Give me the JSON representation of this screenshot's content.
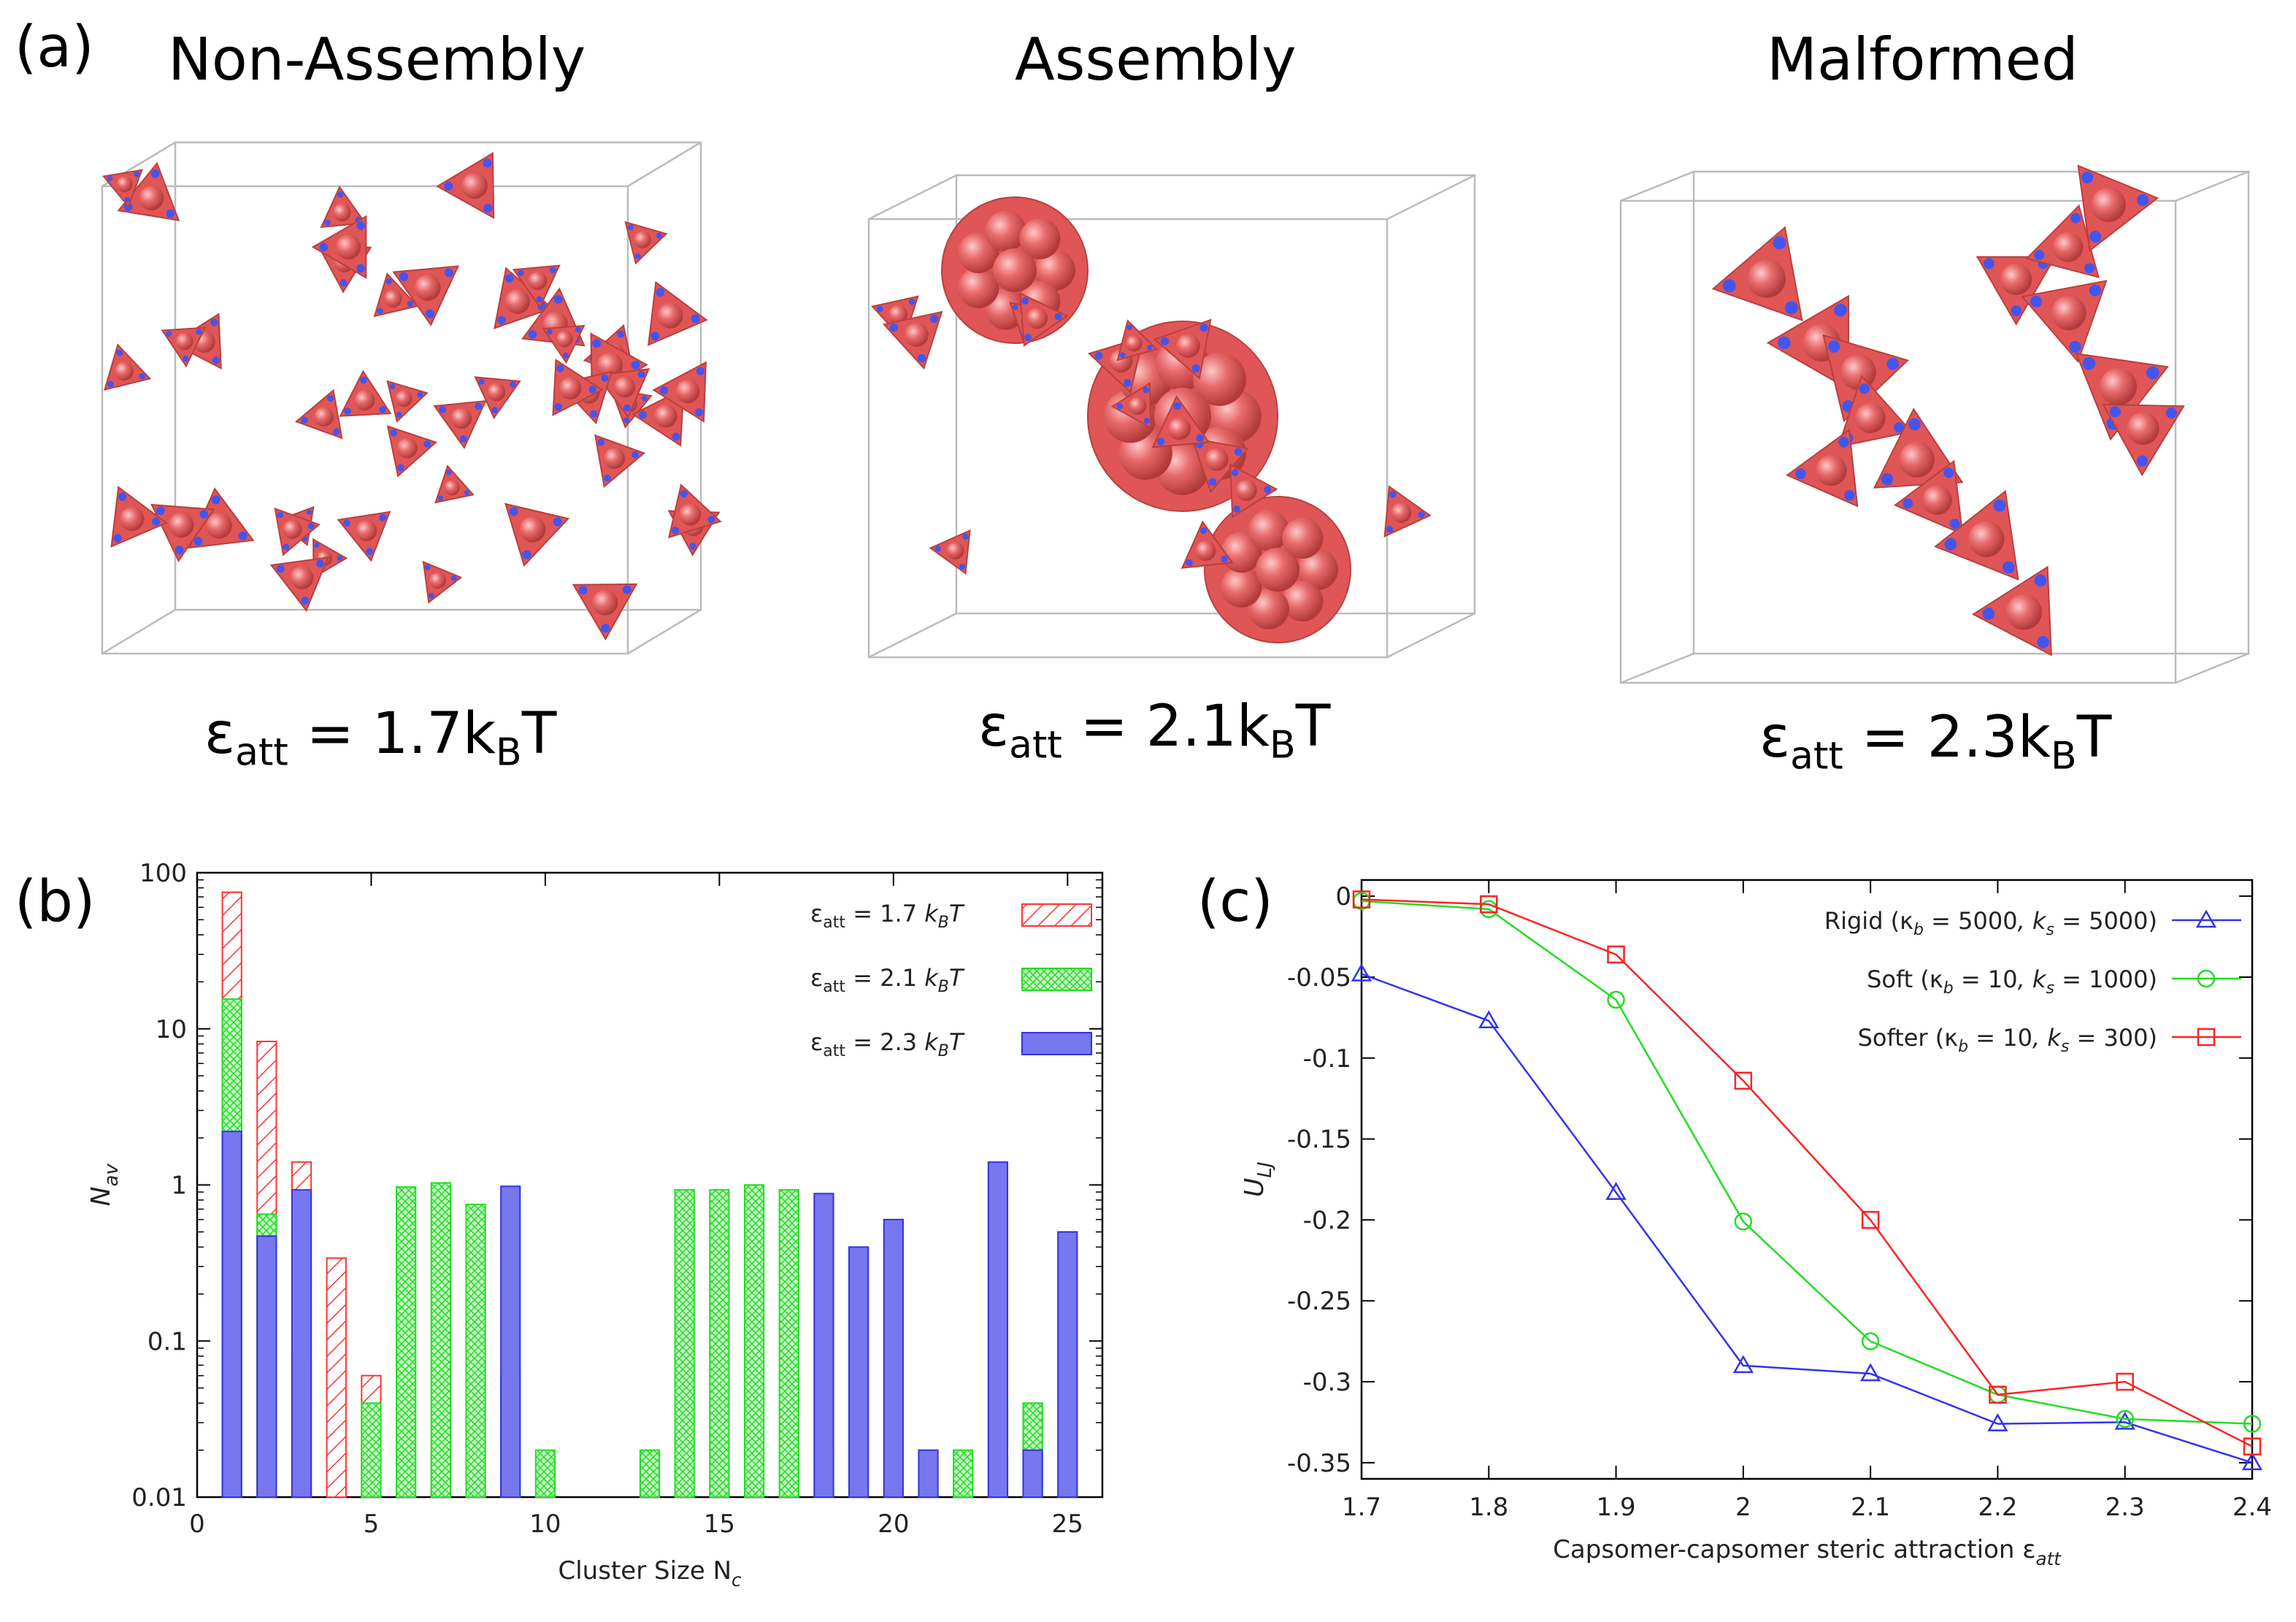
{
  "panel_a": {
    "label": "(a)",
    "titles": [
      "Non-Assembly",
      "Assembly",
      "Malformed"
    ],
    "eps_symbol": "ε",
    "eps_sub": "att",
    "eps_values": [
      "1.7k",
      "2.1k",
      "2.3k"
    ],
    "eps_kb_sub": "B",
    "eps_T": "T",
    "eps_eq": " = "
  },
  "panel_b": {
    "label": "(b)"
  },
  "panel_c": {
    "label": "(c)"
  },
  "colors": {
    "red": "#ff3333",
    "green": "#22dd22",
    "blue": "#5555ee",
    "green_fill": "#c8f5c8",
    "blue_fill": "#7777f0",
    "particle": "#e05555"
  },
  "chart_data": [
    {
      "id": "b",
      "type": "bar",
      "scale": "log",
      "xlabel": "Cluster Size N",
      "xlabel_sub": "c",
      "ylabel": "N",
      "ylabel_sub": "av",
      "xlim": [
        0,
        26
      ],
      "ylim": [
        0.01,
        100
      ],
      "xticks": [
        0,
        5,
        10,
        15,
        20,
        25
      ],
      "yticks": [
        {
          "v": 0.01,
          "t": "0.01"
        },
        {
          "v": 0.1,
          "t": "0.1"
        },
        {
          "v": 1,
          "t": "1"
        },
        {
          "v": 10,
          "t": "10"
        },
        {
          "v": 100,
          "t": "100"
        }
      ],
      "series": [
        {
          "name": "ε",
          "sub": "att",
          "rest": " = 1.7 ",
          "kT": "k",
          "kT_sub": "B",
          "T": "T",
          "style": "red-hatch",
          "points": [
            [
              1,
              75
            ],
            [
              2,
              8.3
            ],
            [
              3,
              1.4
            ],
            [
              4,
              0.34
            ],
            [
              5,
              0.06
            ],
            [
              7,
              0.02
            ]
          ]
        },
        {
          "name": "ε",
          "sub": "att",
          "rest": " = 2.1 ",
          "kT": "k",
          "kT_sub": "B",
          "T": "T",
          "style": "green-mesh",
          "points": [
            [
              1,
              15.5
            ],
            [
              2,
              0.65
            ],
            [
              3,
              0.08
            ],
            [
              5,
              0.04
            ],
            [
              6,
              0.97
            ],
            [
              7,
              1.03
            ],
            [
              8,
              0.75
            ],
            [
              9,
              0.06
            ],
            [
              10,
              0.02
            ],
            [
              13,
              0.02
            ],
            [
              14,
              0.93
            ],
            [
              15,
              0.93
            ],
            [
              16,
              1.0
            ],
            [
              17,
              0.93
            ],
            [
              18,
              0.02
            ],
            [
              22,
              0.02
            ],
            [
              24,
              0.04
            ]
          ]
        },
        {
          "name": "ε",
          "sub": "att",
          "rest": " = 2.3 ",
          "kT": "k",
          "kT_sub": "B",
          "T": "T",
          "style": "blue-solid",
          "points": [
            [
              1,
              2.2
            ],
            [
              2,
              0.47
            ],
            [
              3,
              0.93
            ],
            [
              9,
              0.98
            ],
            [
              18,
              0.88
            ],
            [
              19,
              0.4
            ],
            [
              20,
              0.6
            ],
            [
              21,
              0.02
            ],
            [
              23,
              1.4
            ],
            [
              24,
              0.02
            ],
            [
              25,
              0.5
            ]
          ]
        }
      ]
    },
    {
      "id": "c",
      "type": "line",
      "xlabel": "Capsomer-capsomer steric attraction ε",
      "xlabel_sub": "att",
      "ylabel": "U",
      "ylabel_sub": "LJ",
      "xlim": [
        1.7,
        2.4
      ],
      "ylim": [
        -0.36,
        0.01
      ],
      "xticks": [
        {
          "v": 1.7,
          "t": "1.7"
        },
        {
          "v": 1.8,
          "t": "1.8"
        },
        {
          "v": 1.9,
          "t": "1.9"
        },
        {
          "v": 2.0,
          "t": "2"
        },
        {
          "v": 2.1,
          "t": "2.1"
        },
        {
          "v": 2.2,
          "t": "2.2"
        },
        {
          "v": 2.3,
          "t": "2.3"
        },
        {
          "v": 2.4,
          "t": "2.4"
        }
      ],
      "yticks": [
        {
          "v": 0,
          "t": "0"
        },
        {
          "v": -0.05,
          "t": "-0.05"
        },
        {
          "v": -0.1,
          "t": "-0.1"
        },
        {
          "v": -0.15,
          "t": "-0.15"
        },
        {
          "v": -0.2,
          "t": "-0.2"
        },
        {
          "v": -0.25,
          "t": "-0.25"
        },
        {
          "v": -0.3,
          "t": "-0.3"
        },
        {
          "v": -0.35,
          "t": "-0.35"
        }
      ],
      "series": [
        {
          "name": "Rigid",
          "kb": "5000",
          "ks": "5000",
          "color": "#3333ee",
          "marker": "triangle",
          "x": [
            1.7,
            1.8,
            1.9,
            2.0,
            2.1,
            2.2,
            2.3,
            2.4
          ],
          "y": [
            -0.048,
            -0.077,
            -0.183,
            -0.29,
            -0.295,
            -0.326,
            -0.325,
            -0.35
          ]
        },
        {
          "name": "Soft",
          "kb": "10",
          "ks": "1000",
          "color": "#22dd22",
          "marker": "circle",
          "x": [
            1.7,
            1.8,
            1.9,
            2.0,
            2.1,
            2.2,
            2.3,
            2.4
          ],
          "y": [
            -0.003,
            -0.008,
            -0.064,
            -0.201,
            -0.275,
            -0.308,
            -0.323,
            -0.326
          ]
        },
        {
          "name": "Softer",
          "kb": "10",
          "ks": "300",
          "color": "#ff2222",
          "marker": "square",
          "x": [
            1.7,
            1.8,
            1.9,
            2.0,
            2.1,
            2.2,
            2.3,
            2.4
          ],
          "y": [
            -0.002,
            -0.005,
            -0.036,
            -0.114,
            -0.2,
            -0.308,
            -0.3,
            -0.34
          ]
        }
      ],
      "legend_template": {
        "open": " (κ",
        "kb_sub": "b",
        "eq1": " = ",
        "sep": ", k",
        "ks_sub": "s",
        "eq2": " = ",
        "close": ")"
      }
    }
  ]
}
